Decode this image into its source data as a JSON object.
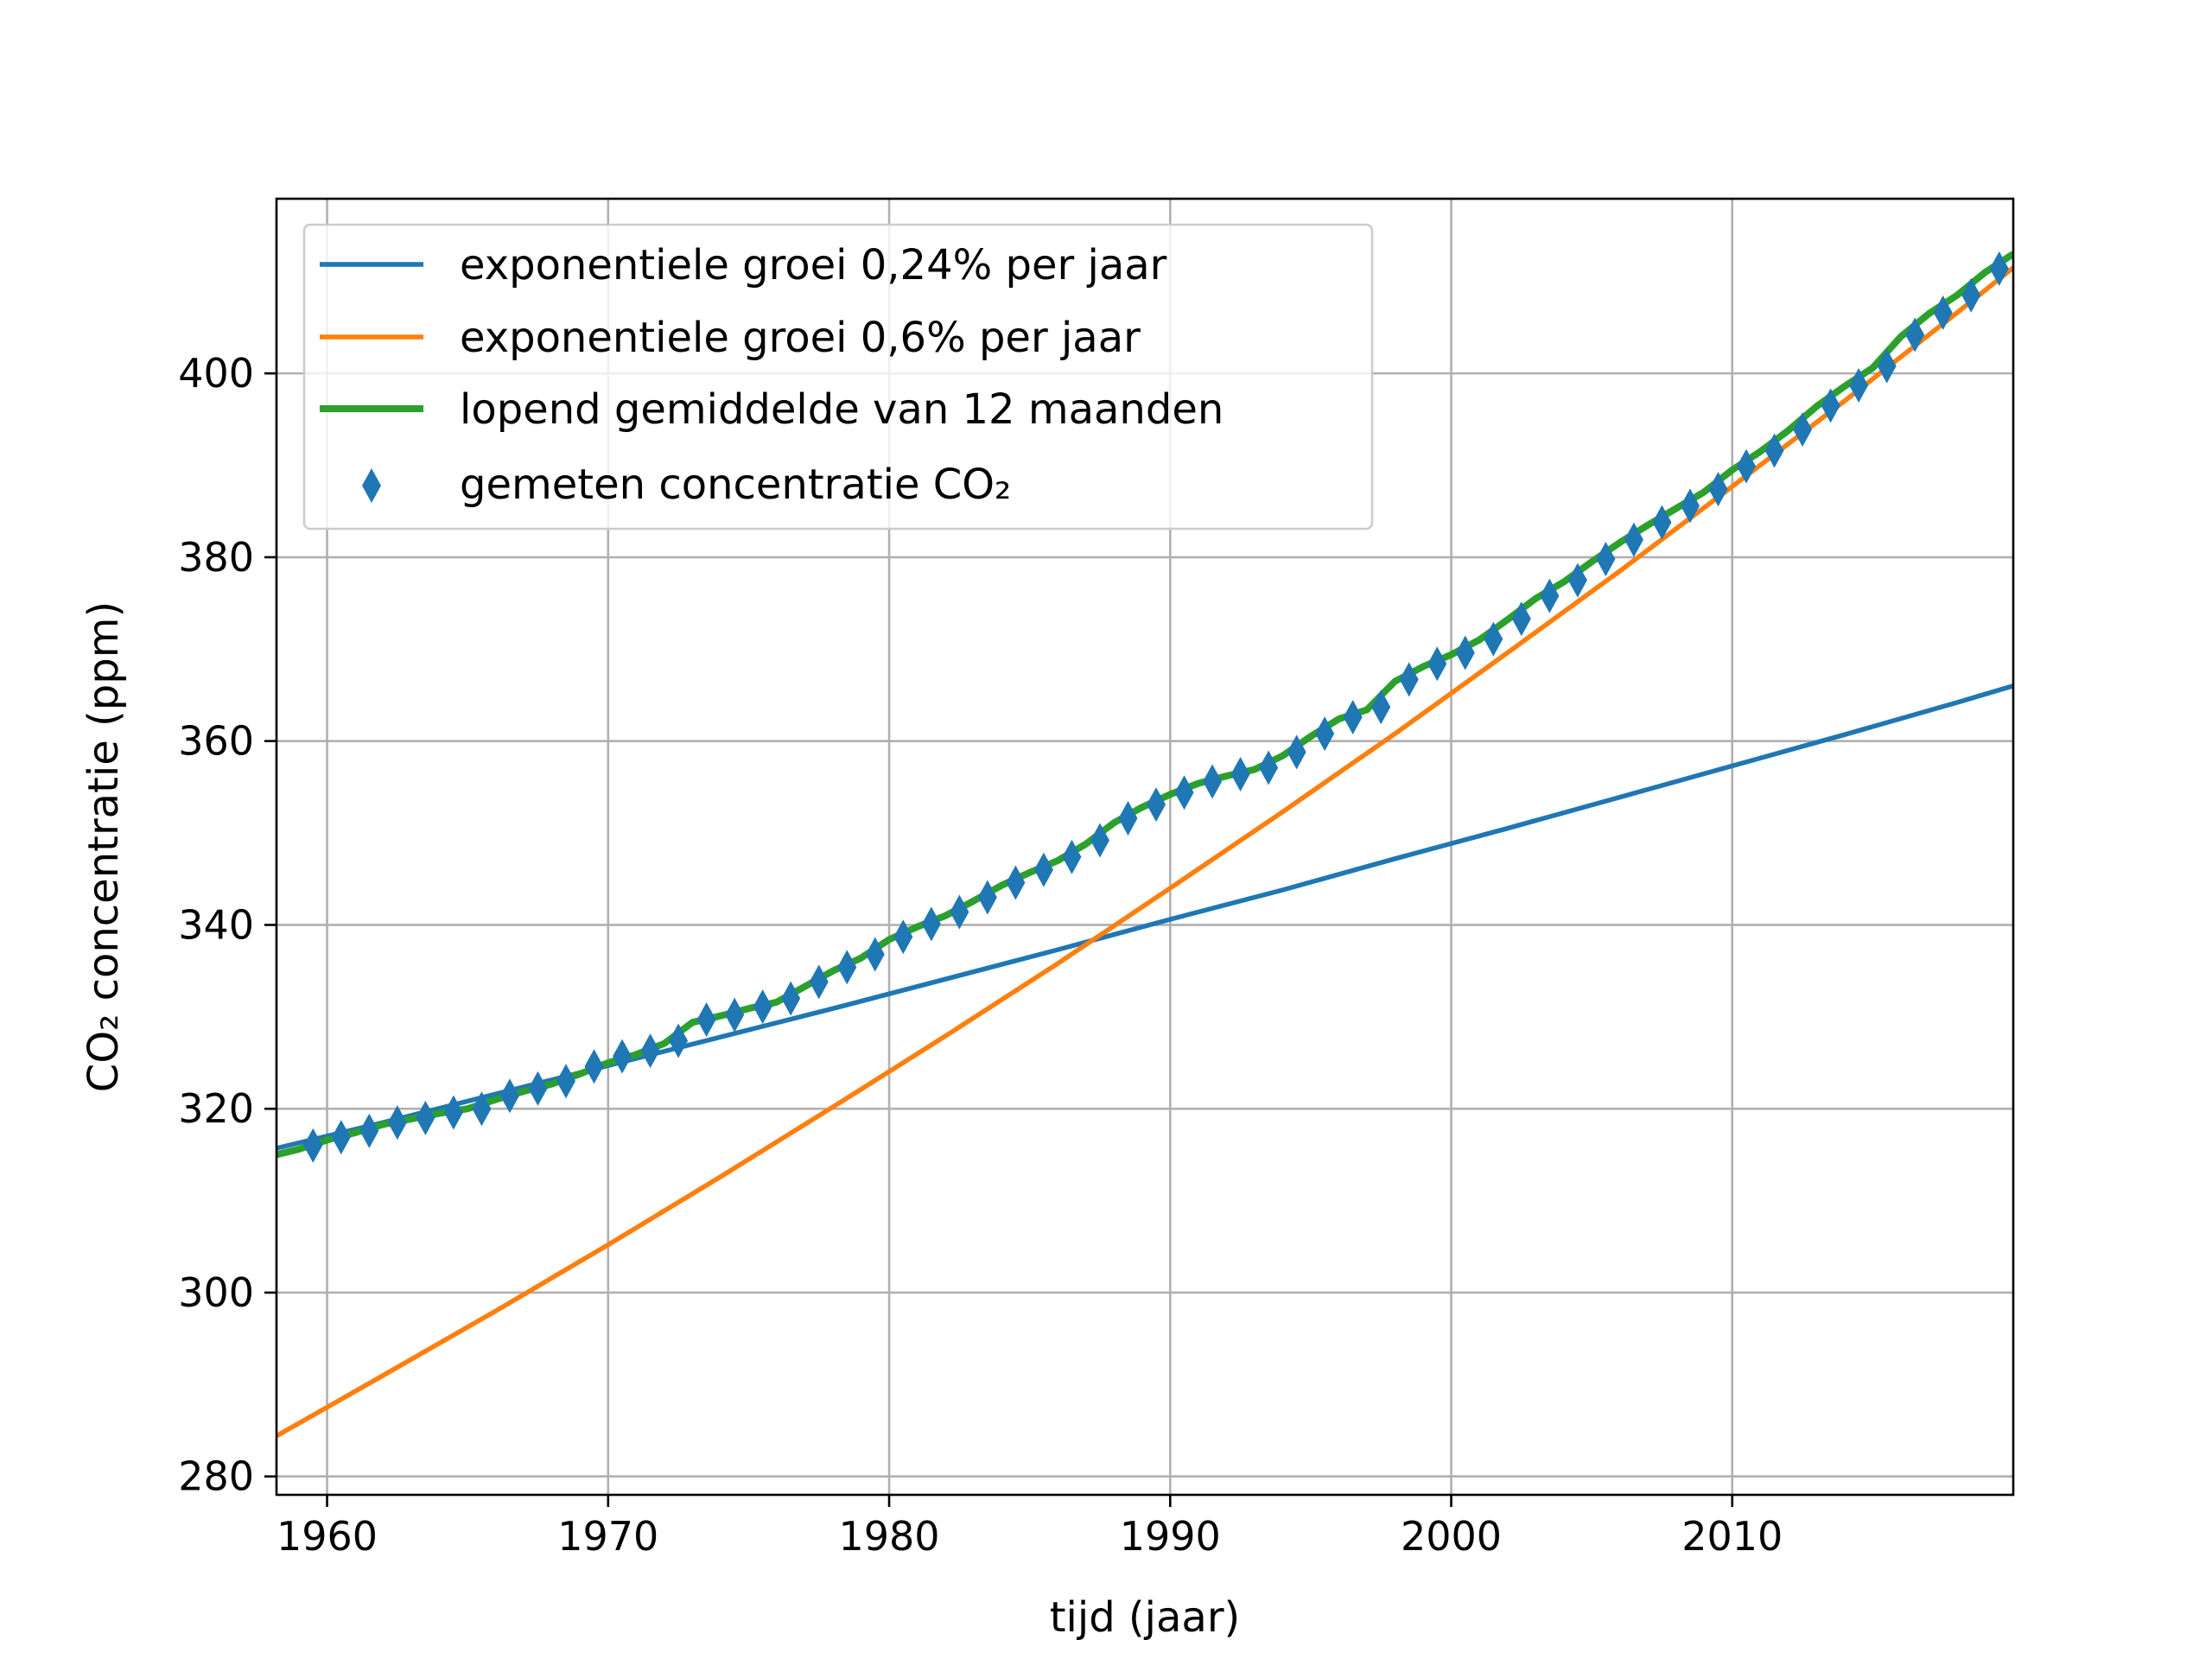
{
  "chart_data": {
    "type": "line",
    "xlabel": "tijd (jaar)",
    "ylabel": "CO₂ concentratie (ppm)",
    "xlim": [
      1958.2,
      2020.0
    ],
    "ylim": [
      278.0,
      419.0
    ],
    "xticks": [
      1960,
      1970,
      1980,
      1990,
      2000,
      2010
    ],
    "yticks": [
      280,
      300,
      320,
      340,
      360,
      380,
      400
    ],
    "grid": true,
    "legend_position": "top-left",
    "series": [
      {
        "name": "exponentiele groei 0,24% per jaar",
        "kind": "line",
        "color": "#1f77b4",
        "x": [
          1958.2,
          1962,
          1966,
          1970,
          1974,
          1978,
          1982,
          1986,
          1990,
          1994,
          1998,
          2002,
          2006,
          2010,
          2014,
          2018,
          2020.0
        ],
        "values": [
          315.7,
          318.5,
          321.6,
          324.7,
          327.8,
          330.9,
          334.1,
          337.3,
          340.6,
          343.8,
          347.2,
          350.5,
          353.9,
          357.3,
          360.7,
          364.2,
          366.0
        ]
      },
      {
        "name": "exponentiele groei 0,6% per jaar",
        "kind": "line",
        "color": "#ff7f0e",
        "x": [
          1958.2,
          1962,
          1966,
          1970,
          1974,
          1978,
          1982,
          1986,
          1990,
          1994,
          1998,
          2002,
          2006,
          2010,
          2014,
          2018,
          2020.0
        ],
        "values": [
          284.4,
          291.0,
          298.0,
          305.2,
          312.6,
          320.2,
          327.9,
          335.8,
          344.0,
          352.3,
          360.8,
          369.6,
          378.5,
          387.7,
          397.0,
          406.6,
          411.5
        ]
      },
      {
        "name": "lopend gemiddelde van 12 maanden",
        "kind": "line",
        "color": "#2ca02c",
        "x": [
          1958.2,
          1959,
          1960,
          1961,
          1962,
          1963,
          1964,
          1965,
          1966,
          1967,
          1968,
          1969,
          1970,
          1971,
          1972,
          1973,
          1974,
          1975,
          1976,
          1977,
          1978,
          1979,
          1980,
          1981,
          1982,
          1983,
          1984,
          1985,
          1986,
          1987,
          1988,
          1989,
          1990,
          1991,
          1992,
          1993,
          1994,
          1995,
          1996,
          1997,
          1998,
          1999,
          2000,
          2001,
          2002,
          2003,
          2004,
          2005,
          2006,
          2007,
          2008,
          2009,
          2010,
          2011,
          2012,
          2013,
          2014,
          2015,
          2016,
          2017,
          2018,
          2019,
          2020.0
        ],
        "values": [
          315.0,
          315.6,
          316.6,
          317.4,
          318.3,
          318.9,
          319.5,
          320.0,
          321.0,
          321.9,
          322.7,
          323.8,
          325.0,
          325.9,
          327.1,
          329.4,
          330.1,
          330.9,
          331.6,
          333.3,
          335.0,
          336.4,
          338.4,
          339.8,
          341.0,
          342.6,
          344.3,
          345.7,
          347.0,
          348.8,
          351.1,
          352.8,
          354.2,
          355.4,
          356.2,
          356.9,
          358.4,
          360.5,
          362.4,
          363.4,
          366.5,
          368.1,
          369.4,
          371.0,
          373.2,
          375.5,
          377.3,
          379.5,
          381.6,
          383.5,
          385.3,
          387.1,
          389.5,
          391.5,
          393.8,
          396.4,
          398.6,
          400.6,
          404.0,
          406.5,
          408.5,
          411.0,
          413.0
        ]
      },
      {
        "name": "gemeten concentratie CO₂",
        "kind": "markers",
        "marker": "thin-diamond",
        "color": "#1f77b4",
        "x": [
          1959.5,
          1960.5,
          1961.5,
          1962.5,
          1963.5,
          1964.5,
          1965.5,
          1966.5,
          1967.5,
          1968.5,
          1969.5,
          1970.5,
          1971.5,
          1972.5,
          1973.5,
          1974.5,
          1975.5,
          1976.5,
          1977.5,
          1978.5,
          1979.5,
          1980.5,
          1981.5,
          1982.5,
          1983.5,
          1984.5,
          1985.5,
          1986.5,
          1987.5,
          1988.5,
          1989.5,
          1990.5,
          1991.5,
          1992.5,
          1993.5,
          1994.5,
          1995.5,
          1996.5,
          1997.5,
          1998.5,
          1999.5,
          2000.5,
          2001.5,
          2002.5,
          2003.5,
          2004.5,
          2005.5,
          2006.5,
          2007.5,
          2008.5,
          2009.5,
          2010.5,
          2011.5,
          2012.5,
          2013.5,
          2014.5,
          2015.5,
          2016.5,
          2017.5,
          2018.5,
          2019.5
        ],
        "values": [
          316.0,
          316.9,
          317.6,
          318.5,
          319.0,
          319.6,
          320.0,
          321.4,
          322.2,
          323.0,
          324.6,
          325.7,
          326.3,
          327.4,
          329.7,
          330.2,
          331.1,
          332.0,
          333.8,
          335.4,
          336.8,
          338.7,
          340.1,
          341.4,
          343.0,
          344.6,
          346.0,
          347.4,
          349.2,
          351.6,
          353.1,
          354.4,
          355.6,
          356.4,
          357.1,
          358.8,
          360.8,
          362.6,
          363.7,
          366.7,
          368.4,
          369.6,
          371.1,
          373.3,
          375.8,
          377.5,
          379.8,
          381.9,
          383.8,
          385.6,
          387.4,
          389.9,
          391.6,
          393.9,
          396.5,
          398.7,
          400.8,
          404.2,
          406.6,
          408.5,
          411.4
        ]
      }
    ]
  }
}
